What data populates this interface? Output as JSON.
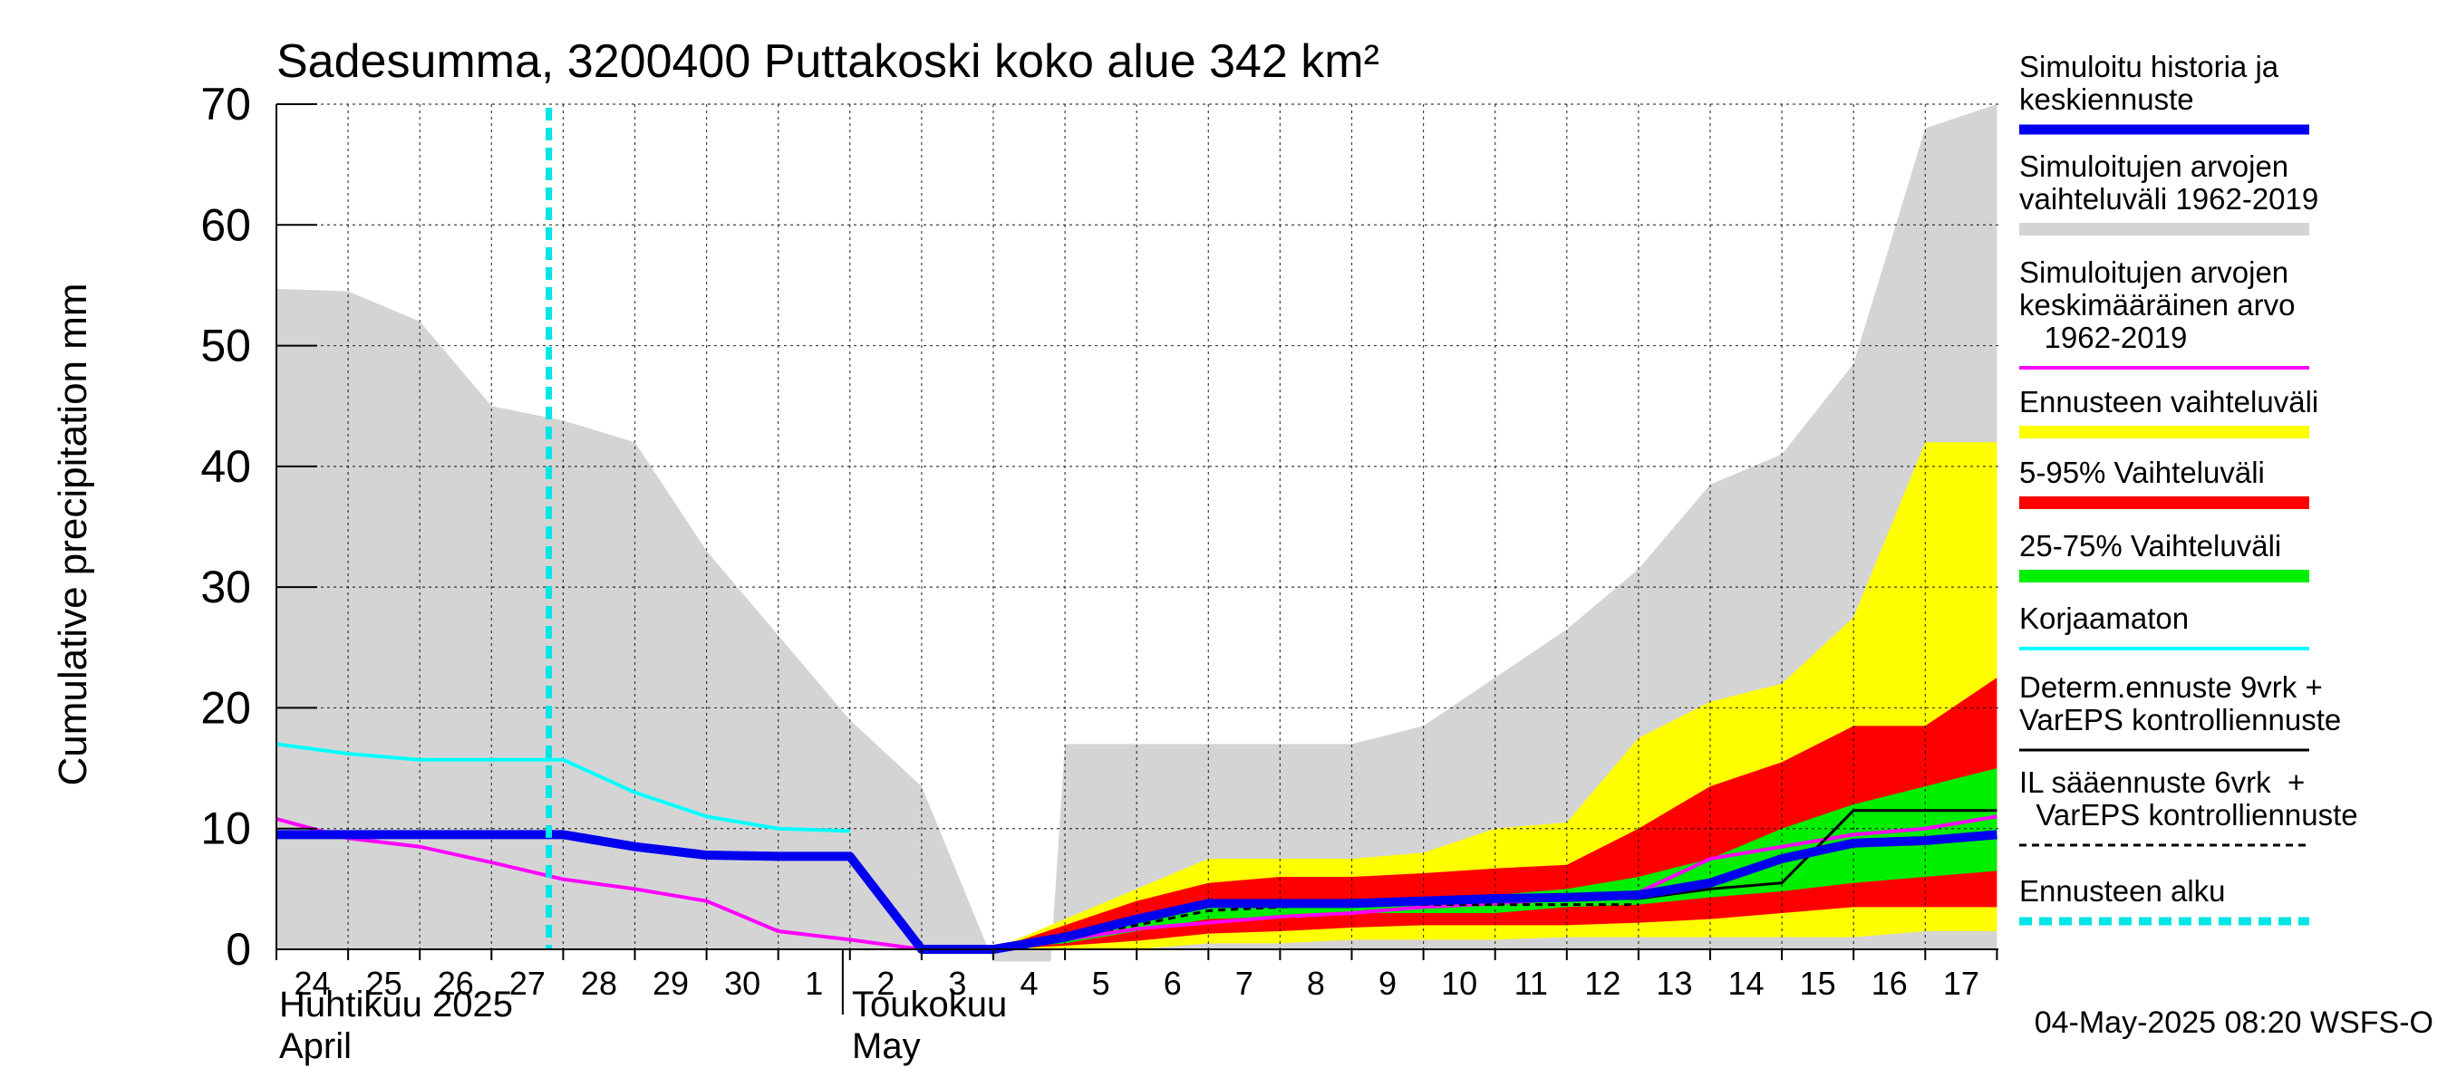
{
  "chart_data": {
    "type": "area",
    "title": "Sadesumma, 3200400 Puttakoski koko alue 342 km²",
    "ylabel": "Cumulative precipitation   mm",
    "xlabel": "",
    "ylim": [
      0,
      70
    ],
    "yticks": [
      0,
      10,
      20,
      30,
      40,
      50,
      60,
      70
    ],
    "grid": true,
    "legend_placement": "right",
    "day_labels": [
      "24",
      "25",
      "26",
      "27",
      "28",
      "29",
      "30",
      "1",
      "2",
      "3",
      "4",
      "5",
      "6",
      "7",
      "8",
      "9",
      "10",
      "11",
      "12",
      "13",
      "14",
      "15",
      "16",
      "17"
    ],
    "month_labels": {
      "april_fi": "Huhtikuu  2025",
      "april_en": "April",
      "may_fi": "Toukokuu",
      "may_en": "May"
    },
    "forecast_start_day": 3.8,
    "timestamp": "04-May-2025 08:20 WSFS-O",
    "colors": {
      "history_range": "#d4d4d4",
      "history_mean": "#ff00ff",
      "simulated": "#0000ee",
      "forecast_range": "#ffff00",
      "p5_95": "#ff0000",
      "p25_75": "#00ee00",
      "uncorrected": "#00ffff",
      "determ": "#000000",
      "il": "#000000",
      "forecast_start": "#00e5e5"
    },
    "series": {
      "history_range_upper": {
        "x": [
          0,
          1,
          2,
          3,
          4,
          5,
          6,
          7,
          8,
          9,
          10,
          10.8,
          11,
          12,
          13,
          14,
          15,
          16,
          17,
          18,
          19,
          20,
          21,
          22,
          23,
          24
        ],
        "y": [
          54.7,
          54.5,
          52,
          45,
          43.8,
          42,
          33,
          26,
          19,
          13.5,
          -1,
          -1,
          17,
          17,
          17,
          17,
          17,
          18.5,
          22.5,
          26.5,
          31.5,
          38.5,
          41,
          48.5,
          68,
          70
        ]
      },
      "forecast_range": {
        "x": [
          10,
          11,
          12,
          13,
          14,
          15,
          16,
          17,
          18,
          19,
          20,
          21,
          22,
          23,
          24
        ],
        "low": [
          0,
          0,
          0,
          0.5,
          0.5,
          0.8,
          0.8,
          0.8,
          1,
          1,
          1,
          1,
          1,
          1.5,
          1.5
        ],
        "high": [
          0,
          2.5,
          5,
          7.5,
          7.5,
          7.5,
          8,
          10,
          10.5,
          17.5,
          20.5,
          22,
          27.5,
          42,
          42
        ]
      },
      "p5_95": {
        "x": [
          10,
          11,
          12,
          13,
          14,
          15,
          16,
          17,
          18,
          19,
          20,
          21,
          22,
          23,
          24
        ],
        "low": [
          0,
          0.3,
          0.7,
          1.3,
          1.5,
          1.8,
          2,
          2,
          2,
          2.2,
          2.5,
          3,
          3.5,
          3.5,
          3.5
        ],
        "high": [
          0,
          2,
          4,
          5.5,
          6,
          6,
          6.3,
          6.7,
          7,
          10,
          13.5,
          15.5,
          18.5,
          18.5,
          22.5
        ]
      },
      "p25_75": {
        "x": [
          10,
          11,
          12,
          13,
          14,
          15,
          16,
          17,
          18,
          19,
          20,
          21,
          22,
          23,
          24
        ],
        "low": [
          0,
          0.5,
          1.5,
          2.5,
          2.7,
          3,
          3,
          3,
          3.5,
          3.7,
          4.3,
          4.8,
          5.5,
          6,
          6.5
        ],
        "high": [
          0,
          1,
          2.5,
          3.5,
          4,
          4,
          4.3,
          4.5,
          5,
          6,
          7.5,
          10,
          12,
          13.5,
          15
        ]
      },
      "history_mean": {
        "x": [
          0,
          1,
          2,
          3,
          4,
          5,
          6,
          7,
          8,
          9,
          10,
          11,
          12,
          13,
          14,
          15,
          16,
          17,
          18,
          19,
          20,
          21,
          22,
          23,
          24
        ],
        "y": [
          10.8,
          9.2,
          8.5,
          7.2,
          5.8,
          5,
          4,
          1.5,
          0.8,
          0,
          0,
          0.8,
          1.7,
          2.2,
          2.7,
          3,
          3.5,
          3.8,
          4.2,
          4.7,
          7.5,
          8.5,
          9.5,
          10,
          11
        ]
      },
      "uncorrected": {
        "x": [
          0,
          1,
          2,
          3,
          4,
          5,
          6,
          7,
          8
        ],
        "y": [
          17,
          16.2,
          15.7,
          15.7,
          15.7,
          13,
          11,
          10,
          9.8
        ]
      },
      "simulated": {
        "x": [
          0,
          1,
          2,
          3,
          4,
          5,
          6,
          7,
          8,
          9,
          10,
          11,
          12,
          13,
          14,
          15,
          16,
          17,
          18,
          19,
          20,
          21,
          22,
          23,
          24
        ],
        "y": [
          9.5,
          9.5,
          9.5,
          9.5,
          9.5,
          8.5,
          7.8,
          7.7,
          7.7,
          0,
          0,
          1,
          2.5,
          3.8,
          3.8,
          3.8,
          4,
          4.2,
          4.3,
          4.5,
          5.5,
          7.5,
          8.8,
          9,
          9.5
        ]
      },
      "determ": {
        "x": [
          10,
          11,
          12,
          13,
          14,
          15,
          16,
          17,
          18,
          19,
          20,
          21,
          22,
          23,
          24
        ],
        "y": [
          0,
          1.3,
          2.5,
          4,
          4,
          4,
          4,
          4.2,
          4.2,
          4.2,
          5,
          5.5,
          11.5,
          11.5,
          11.5
        ]
      },
      "il_forecast": {
        "x": [
          10,
          11,
          12,
          13,
          14,
          15,
          16,
          17,
          18,
          19
        ],
        "y": [
          0,
          1,
          2,
          3.2,
          3.5,
          3.7,
          3.7,
          3.7,
          3.7,
          3.7
        ]
      }
    },
    "legend": [
      {
        "label": [
          "Simuloitu historia ja",
          "keskiennuste"
        ],
        "style": "thick-blue"
      },
      {
        "label": [
          "Simuloitujen arvojen",
          "vaihteluväli 1962-2019"
        ],
        "style": "gray-bar"
      },
      {
        "label": [
          "Simuloitujen arvojen",
          "keskimääräinen arvo",
          "   1962-2019"
        ],
        "style": "magenta-line"
      },
      {
        "label": [
          "Ennusteen vaihteluväli"
        ],
        "style": "yellow-bar"
      },
      {
        "label": [
          "5-95% Vaihteluväli"
        ],
        "style": "red-bar"
      },
      {
        "label": [
          "25-75% Vaihteluväli"
        ],
        "style": "green-bar"
      },
      {
        "label": [
          "Korjaamaton"
        ],
        "style": "cyan-line"
      },
      {
        "label": [
          "Determ.ennuste 9vrk +",
          "VarEPS kontrolliennuste"
        ],
        "style": "black-line"
      },
      {
        "label": [
          "IL sääennuste 6vrk  +",
          "  VarEPS kontrolliennuste"
        ],
        "style": "black-dash"
      },
      {
        "label": [
          "Ennusteen alku"
        ],
        "style": "cyan-dash"
      }
    ]
  }
}
